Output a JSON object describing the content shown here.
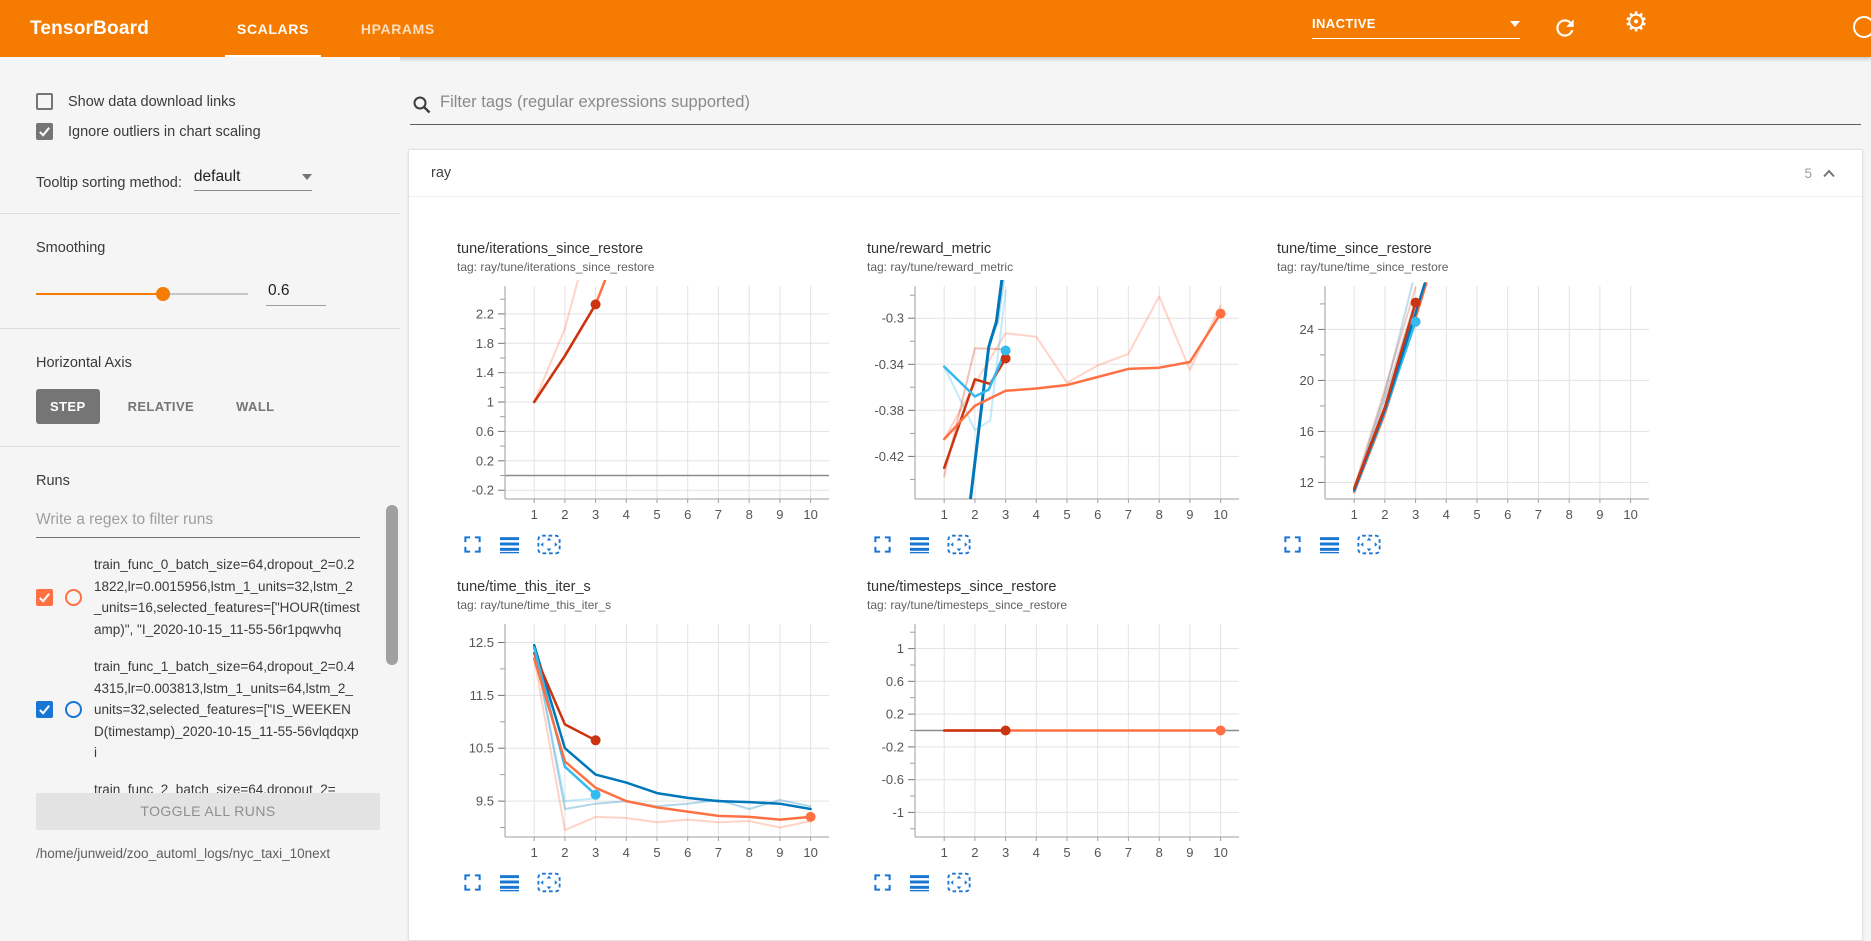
{
  "header": {
    "title": "TensorBoard",
    "tabs": [
      {
        "label": "SCALARS",
        "active": true
      },
      {
        "label": "HPARAMS",
        "active": false
      }
    ],
    "status": "INACTIVE",
    "accent_color": "#f57c00"
  },
  "sidebar": {
    "checkboxes": [
      {
        "label": "Show data download links",
        "checked": false
      },
      {
        "label": "Ignore outliers in chart scaling",
        "checked": true
      }
    ],
    "tooltip_sort": {
      "label": "Tooltip sorting method:",
      "value": "default"
    },
    "smoothing": {
      "label": "Smoothing",
      "value": "0.6",
      "percent": 60
    },
    "axis": {
      "label": "Horizontal Axis",
      "options": [
        "STEP",
        "RELATIVE",
        "WALL"
      ],
      "selected": "STEP"
    },
    "runs": {
      "label": "Runs",
      "placeholder": "Write a regex to filter runs",
      "items": [
        {
          "name": "train_func_0_batch_size=64,dropout_2=0.21822,lr=0.0015956,lstm_1_units=32,lstm_2_units=16,selected_features=[\"HOUR(timestamp)\", \"I_2020-10-15_11-55-56r1pqwvhq",
          "checked": true,
          "color": "#ff7043"
        },
        {
          "name": "train_func_1_batch_size=64,dropout_2=0.44315,lr=0.003813,lstm_1_units=64,lstm_2_units=32,selected_features=[\"IS_WEEKEND(timestamp)_2020-10-15_11-55-56vlqdqxpi",
          "checked": true,
          "color": "#1976d2"
        },
        {
          "name": "train_func_2_batch_size=64,dropout_2=",
          "checked": true,
          "color": "#33bbee"
        }
      ],
      "toggle_all": "TOGGLE ALL RUNS",
      "path": "/home/junweid/zoo_automl_logs/nyc_taxi_10next"
    }
  },
  "main": {
    "filter_placeholder": "Filter tags (regular expressions supported)",
    "section": {
      "title": "ray",
      "count": "5"
    }
  },
  "chart_data": [
    {
      "type": "line",
      "title": "tune/iterations_since_restore",
      "tag": "tag: ray/tune/iterations_since_restore",
      "x_ticks": [
        1,
        2,
        3,
        4,
        5,
        6,
        7,
        8,
        9,
        10
      ],
      "y_ticks": [
        2.2,
        1.8,
        1.4,
        1,
        0.6,
        0.2,
        -0.2
      ],
      "xlim": [
        0.05,
        10.6
      ],
      "ylim": [
        -0.32,
        2.58
      ],
      "zero_line": true,
      "series": [
        {
          "name": "orange-run-unsmoothed",
          "color": "#ff7043",
          "opacity": 0.3,
          "width": 2,
          "points": [
            [
              1,
              1
            ],
            [
              2,
              2
            ],
            [
              2.45,
              2.7
            ]
          ]
        },
        {
          "name": "orange-run",
          "color": "#ff7043",
          "opacity": 1,
          "width": 2.5,
          "points": [
            [
              1,
              1
            ],
            [
              2,
              1.63
            ],
            [
              3,
              2.33
            ],
            [
              3.35,
              2.7
            ]
          ]
        },
        {
          "name": "red-run",
          "color": "#cc3311",
          "opacity": 1,
          "width": 2.5,
          "points": [
            [
              1,
              1
            ],
            [
              2,
              1.63
            ],
            [
              3,
              2.33
            ]
          ],
          "end_dot": true
        }
      ]
    },
    {
      "type": "line",
      "title": "tune/reward_metric",
      "tag": "tag: ray/tune/reward_metric",
      "x_ticks": [
        1,
        2,
        3,
        4,
        5,
        6,
        7,
        8,
        9,
        10
      ],
      "y_ticks": [
        -0.3,
        -0.34,
        -0.38,
        -0.42
      ],
      "xlim": [
        0.05,
        10.6
      ],
      "ylim": [
        -0.457,
        -0.272
      ],
      "zero_line": false,
      "series": [
        {
          "name": "orange-run-unsmoothed",
          "color": "#ff7043",
          "opacity": 0.3,
          "width": 2,
          "points": [
            [
              1,
              -0.405
            ],
            [
              2,
              -0.357
            ],
            [
              3,
              -0.313
            ],
            [
              4,
              -0.316
            ],
            [
              5,
              -0.356
            ],
            [
              6,
              -0.341
            ],
            [
              7,
              -0.331
            ],
            [
              8,
              -0.281
            ],
            [
              9,
              -0.345
            ],
            [
              10,
              -0.289
            ]
          ]
        },
        {
          "name": "cyan-run-unsmoothed",
          "color": "#33bbee",
          "opacity": 0.3,
          "width": 2,
          "points": [
            [
              1,
              -0.342
            ],
            [
              2,
              -0.397
            ],
            [
              2.5,
              -0.389
            ],
            [
              3,
              -0.276
            ]
          ]
        },
        {
          "name": "blue-run-unsmoothed",
          "color": "#0077bb",
          "opacity": 0.3,
          "width": 2,
          "points": [
            [
              1.85,
              -0.46
            ],
            [
              2.5,
              -0.318
            ],
            [
              2.75,
              -0.304
            ],
            [
              3.3,
              -0.2
            ]
          ]
        },
        {
          "name": "red-run-unsmoothed",
          "color": "#cc3311",
          "opacity": 0.3,
          "width": 2,
          "points": [
            [
              1,
              -0.437
            ],
            [
              2,
              -0.326
            ],
            [
              3,
              -0.327
            ]
          ]
        },
        {
          "name": "blue-run",
          "color": "#0077bb",
          "opacity": 1,
          "width": 3,
          "points": [
            [
              1.8,
              -0.47
            ],
            [
              2.45,
              -0.325
            ],
            [
              2.7,
              -0.303
            ],
            [
              3.25,
              -0.19
            ]
          ]
        },
        {
          "name": "red-run",
          "color": "#cc3311",
          "opacity": 1,
          "width": 2.5,
          "points": [
            [
              1,
              -0.43
            ],
            [
              2,
              -0.353
            ],
            [
              2.5,
              -0.357
            ],
            [
              3,
              -0.335
            ]
          ],
          "end_dot": true
        },
        {
          "name": "cyan-run",
          "color": "#33bbee",
          "opacity": 1,
          "width": 2.5,
          "points": [
            [
              1,
              -0.342
            ],
            [
              2,
              -0.368
            ],
            [
              2.45,
              -0.362
            ],
            [
              3,
              -0.328
            ]
          ],
          "end_dot": true
        },
        {
          "name": "orange-run",
          "color": "#ff7043",
          "opacity": 1,
          "width": 2.5,
          "points": [
            [
              1,
              -0.405
            ],
            [
              2,
              -0.376
            ],
            [
              3,
              -0.363
            ],
            [
              4,
              -0.361
            ],
            [
              5,
              -0.358
            ],
            [
              6,
              -0.351
            ],
            [
              7,
              -0.344
            ],
            [
              8,
              -0.343
            ],
            [
              9,
              -0.338
            ],
            [
              10,
              -0.296
            ]
          ],
          "end_dot": true
        }
      ]
    },
    {
      "type": "line",
      "title": "tune/time_since_restore",
      "tag": "tag: ray/tune/time_since_restore",
      "x_ticks": [
        1,
        2,
        3,
        4,
        5,
        6,
        7,
        8,
        9,
        10
      ],
      "y_ticks": [
        24,
        20,
        16,
        12
      ],
      "xlim": [
        0.05,
        10.6
      ],
      "ylim": [
        10.7,
        27.4
      ],
      "zero_line": false,
      "series": [
        {
          "name": "blue-run-unsmoothed",
          "color": "#0077bb",
          "opacity": 0.25,
          "width": 2,
          "points": [
            [
              1,
              11.4
            ],
            [
              2,
              19
            ],
            [
              2.9,
              27.6
            ]
          ]
        },
        {
          "name": "red-run-unsmoothed",
          "color": "#cc3311",
          "opacity": 0.25,
          "width": 2,
          "points": [
            [
              1,
              11.6
            ],
            [
              2,
              19.3
            ],
            [
              3,
              27.3
            ]
          ]
        },
        {
          "name": "gray-run",
          "color": "#9e9e9e",
          "opacity": 0.5,
          "width": 2,
          "points": [
            [
              1,
              11.3
            ],
            [
              2,
              18.6
            ],
            [
              3,
              26.3
            ]
          ]
        },
        {
          "name": "orange-run",
          "color": "#ff7043",
          "opacity": 1,
          "width": 2.5,
          "points": [
            [
              1,
              11.25
            ],
            [
              2,
              17.4
            ],
            [
              3,
              24.9
            ],
            [
              3.35,
              27.6
            ]
          ]
        },
        {
          "name": "cyan-run",
          "color": "#33bbee",
          "opacity": 1,
          "width": 2.5,
          "points": [
            [
              1,
              11.35
            ],
            [
              2,
              17.6
            ],
            [
              3,
              24.6
            ]
          ],
          "end_dot": true
        },
        {
          "name": "blue-run",
          "color": "#0077bb",
          "opacity": 1,
          "width": 2.5,
          "points": [
            [
              1,
              11.4
            ],
            [
              2,
              17.7
            ],
            [
              3,
              25.3
            ],
            [
              3.3,
              27.6
            ]
          ]
        },
        {
          "name": "red-run",
          "color": "#cc3311",
          "opacity": 1,
          "width": 2.5,
          "points": [
            [
              1,
              11.55
            ],
            [
              2,
              17.9
            ],
            [
              3,
              26.1
            ]
          ],
          "end_dot": true
        }
      ]
    },
    {
      "type": "line",
      "title": "tune/time_this_iter_s",
      "tag": "tag: ray/tune/time_this_iter_s",
      "x_ticks": [
        1,
        2,
        3,
        4,
        5,
        6,
        7,
        8,
        9,
        10
      ],
      "y_ticks": [
        12.5,
        11.5,
        10.5,
        9.5
      ],
      "xlim": [
        0.05,
        10.6
      ],
      "ylim": [
        8.82,
        12.85
      ],
      "zero_line": false,
      "series": [
        {
          "name": "blue-run-unsmoothed",
          "color": "#0077bb",
          "opacity": 0.3,
          "width": 2,
          "points": [
            [
              1,
              12.45
            ],
            [
              2,
              9.35
            ],
            [
              3,
              9.45
            ],
            [
              4,
              9.5
            ],
            [
              5,
              9.4
            ],
            [
              6,
              9.45
            ],
            [
              7,
              9.52
            ],
            [
              8,
              9.35
            ],
            [
              9,
              9.52
            ],
            [
              10,
              9.4
            ]
          ]
        },
        {
          "name": "orange-run-unsmoothed",
          "color": "#ff7043",
          "opacity": 0.3,
          "width": 2,
          "points": [
            [
              1,
              12.2
            ],
            [
              2,
              8.95
            ],
            [
              3,
              9.2
            ],
            [
              4,
              9.18
            ],
            [
              5,
              9.1
            ],
            [
              6,
              9.15
            ],
            [
              7,
              9.1
            ],
            [
              8,
              9.12
            ],
            [
              9,
              9
            ],
            [
              10,
              9.12
            ]
          ]
        },
        {
          "name": "cyan-run-unsmoothed",
          "color": "#33bbee",
          "opacity": 0.3,
          "width": 2,
          "points": [
            [
              1,
              12.4
            ],
            [
              2,
              9.5
            ],
            [
              3,
              9.55
            ]
          ]
        },
        {
          "name": "blue-run",
          "color": "#0077bb",
          "opacity": 1,
          "width": 2.5,
          "points": [
            [
              1,
              12.45
            ],
            [
              2,
              10.5
            ],
            [
              3,
              10
            ],
            [
              4,
              9.85
            ],
            [
              5,
              9.65
            ],
            [
              6,
              9.56
            ],
            [
              7,
              9.5
            ],
            [
              8,
              9.48
            ],
            [
              9,
              9.45
            ],
            [
              10,
              9.35
            ]
          ]
        },
        {
          "name": "red-run",
          "color": "#cc3311",
          "opacity": 1,
          "width": 2.5,
          "points": [
            [
              1,
              12.3
            ],
            [
              2,
              10.95
            ],
            [
              3,
              10.65
            ]
          ],
          "end_dot": true
        },
        {
          "name": "cyan-run",
          "color": "#33bbee",
          "opacity": 1,
          "width": 2.5,
          "points": [
            [
              1,
              12.4
            ],
            [
              2,
              10.15
            ],
            [
              3,
              9.62
            ]
          ],
          "end_dot": true
        },
        {
          "name": "orange-run",
          "color": "#ff7043",
          "opacity": 1,
          "width": 2.5,
          "points": [
            [
              1,
              12.2
            ],
            [
              2,
              10.25
            ],
            [
              3,
              9.75
            ],
            [
              4,
              9.5
            ],
            [
              5,
              9.38
            ],
            [
              6,
              9.3
            ],
            [
              7,
              9.22
            ],
            [
              8,
              9.2
            ],
            [
              9,
              9.15
            ],
            [
              10,
              9.2
            ]
          ],
          "end_dot": true
        }
      ]
    },
    {
      "type": "line",
      "title": "tune/timesteps_since_restore",
      "tag": "tag: ray/tune/timesteps_since_restore",
      "x_ticks": [
        1,
        2,
        3,
        4,
        5,
        6,
        7,
        8,
        9,
        10
      ],
      "y_ticks": [
        1,
        0.6,
        0.2,
        -0.2,
        -0.6,
        -1
      ],
      "xlim": [
        0.05,
        10.6
      ],
      "ylim": [
        -1.3,
        1.3
      ],
      "zero_line": true,
      "series": [
        {
          "name": "orange-run",
          "color": "#ff7043",
          "opacity": 1,
          "width": 2.5,
          "points": [
            [
              1,
              0
            ],
            [
              10,
              0
            ]
          ],
          "end_dot": true
        },
        {
          "name": "red-run",
          "color": "#cc3311",
          "opacity": 1,
          "width": 2.5,
          "points": [
            [
              1,
              0
            ],
            [
              3,
              0
            ]
          ],
          "end_dot": true
        }
      ]
    }
  ]
}
